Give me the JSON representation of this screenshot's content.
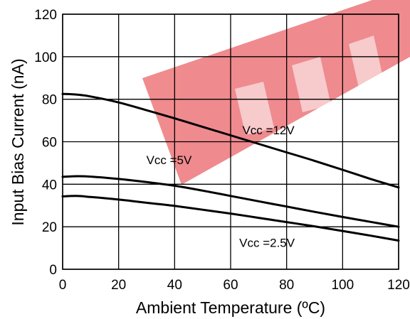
{
  "chart_data": {
    "type": "line",
    "title": "",
    "xlabel": "Ambient Temperature (ºC)",
    "ylabel": "Input Bias Current (nA)",
    "xlim": [
      0,
      120
    ],
    "ylim": [
      0,
      120
    ],
    "x_ticks": [
      0,
      20,
      40,
      60,
      80,
      100,
      120
    ],
    "y_ticks": [
      0,
      20,
      40,
      60,
      80,
      100,
      120
    ],
    "grid": true,
    "legend": "none",
    "series": [
      {
        "name": "Vcc =12V",
        "x": [
          0,
          5,
          10,
          20,
          30,
          40,
          50,
          60,
          70,
          80,
          90,
          100,
          110,
          120
        ],
        "y": [
          82.5,
          82.2,
          81.3,
          78.5,
          74.8,
          71.0,
          67.0,
          63.0,
          59.0,
          55.0,
          51.0,
          46.8,
          42.5,
          38.5
        ]
      },
      {
        "name": "Vcc =5V",
        "x": [
          0,
          5,
          10,
          20,
          30,
          40,
          50,
          60,
          70,
          80,
          90,
          100,
          110,
          120
        ],
        "y": [
          43.5,
          43.8,
          43.6,
          42.5,
          41.0,
          39.3,
          37.0,
          34.5,
          32.0,
          29.5,
          27.0,
          24.6,
          22.3,
          20.0
        ]
      },
      {
        "name": "Vcc =2.5V",
        "x": [
          0,
          5,
          10,
          20,
          30,
          40,
          50,
          60,
          70,
          80,
          90,
          100,
          110,
          120
        ],
        "y": [
          34.3,
          34.5,
          34.0,
          32.8,
          31.3,
          29.8,
          28.0,
          26.2,
          24.2,
          22.2,
          20.2,
          18.0,
          15.8,
          13.5
        ]
      }
    ],
    "annotations": [
      {
        "text": "Vcc =12V",
        "x": 73.5,
        "y": 63.5
      },
      {
        "text": "Vcc =5V",
        "x": 38,
        "y": 49.5
      },
      {
        "text": "Vcc =2.5V",
        "x": 73,
        "y": 10.5
      }
    ],
    "colors": {
      "line": "#000000",
      "grid": "#000000",
      "watermark": "#e8585e"
    }
  }
}
